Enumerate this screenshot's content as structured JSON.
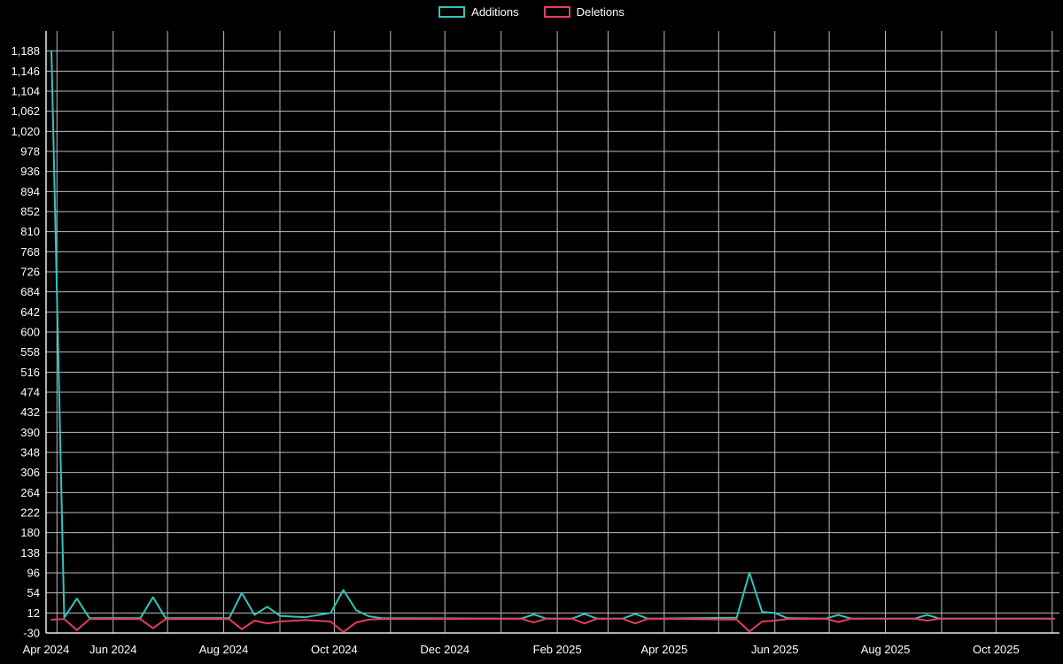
{
  "chart_data": {
    "type": "line",
    "title": "",
    "background": "#000000",
    "text_color": "#ffffff",
    "grid_color": "#bdbdbd",
    "axis_color": "#e8e8e8",
    "legend_position": "top-center",
    "x_axis": {
      "type": "time",
      "min": "2024-04-25",
      "max": "2025-11-05",
      "gridline_interval": "month",
      "tick_dates": [
        "2024-04-25",
        "2024-06-01",
        "2024-08-01",
        "2024-10-01",
        "2024-12-01",
        "2025-02-01",
        "2025-04-01",
        "2025-06-01",
        "2025-08-01",
        "2025-10-01"
      ],
      "tick_labels": [
        "Apr 2024",
        "Jun 2024",
        "Aug 2024",
        "Oct 2024",
        "Dec 2024",
        "Feb 2025",
        "Apr 2025",
        "Jun 2025",
        "Aug 2025",
        "Oct 2025"
      ]
    },
    "y_axis": {
      "min": -30,
      "max": 1230,
      "tick_step": 42,
      "ticks": [
        -30,
        12,
        54,
        96,
        138,
        180,
        222,
        264,
        306,
        348,
        390,
        432,
        474,
        516,
        558,
        600,
        642,
        684,
        726,
        768,
        810,
        852,
        894,
        936,
        978,
        1020,
        1062,
        1104,
        1146,
        1188
      ]
    },
    "series": [
      {
        "name": "Additions",
        "color": "#31c3bd",
        "points": [
          [
            "2024-04-28",
            1188
          ],
          [
            "2024-05-05",
            2
          ],
          [
            "2024-05-12",
            42
          ],
          [
            "2024-05-19",
            1
          ],
          [
            "2024-06-16",
            1
          ],
          [
            "2024-06-23",
            45
          ],
          [
            "2024-06-30",
            1
          ],
          [
            "2024-08-04",
            1
          ],
          [
            "2024-08-11",
            54
          ],
          [
            "2024-08-18",
            8
          ],
          [
            "2024-08-25",
            25
          ],
          [
            "2024-09-01",
            6
          ],
          [
            "2024-09-15",
            3
          ],
          [
            "2024-09-29",
            12
          ],
          [
            "2024-10-06",
            60
          ],
          [
            "2024-10-13",
            18
          ],
          [
            "2024-10-20",
            5
          ],
          [
            "2024-10-27",
            1
          ],
          [
            "2025-01-12",
            0
          ],
          [
            "2025-01-19",
            9
          ],
          [
            "2025-01-26",
            0
          ],
          [
            "2025-02-09",
            0
          ],
          [
            "2025-02-16",
            10
          ],
          [
            "2025-02-23",
            0
          ],
          [
            "2025-03-09",
            0
          ],
          [
            "2025-03-16",
            10
          ],
          [
            "2025-03-23",
            0
          ],
          [
            "2025-05-11",
            2
          ],
          [
            "2025-05-18",
            96
          ],
          [
            "2025-05-25",
            14
          ],
          [
            "2025-06-01",
            12
          ],
          [
            "2025-06-08",
            1
          ],
          [
            "2025-06-29",
            0
          ],
          [
            "2025-07-06",
            8
          ],
          [
            "2025-07-13",
            0
          ],
          [
            "2025-08-17",
            0
          ],
          [
            "2025-08-24",
            8
          ],
          [
            "2025-08-31",
            0
          ],
          [
            "2025-11-02",
            0
          ]
        ]
      },
      {
        "name": "Deletions",
        "color": "#e63c5e",
        "points": [
          [
            "2024-04-28",
            -2
          ],
          [
            "2024-05-05",
            -1
          ],
          [
            "2024-05-12",
            -24
          ],
          [
            "2024-05-19",
            -1
          ],
          [
            "2024-06-16",
            -1
          ],
          [
            "2024-06-23",
            -20
          ],
          [
            "2024-06-30",
            -1
          ],
          [
            "2024-08-04",
            -1
          ],
          [
            "2024-08-11",
            -22
          ],
          [
            "2024-08-18",
            -4
          ],
          [
            "2024-08-25",
            -10
          ],
          [
            "2024-09-01",
            -6
          ],
          [
            "2024-09-15",
            -3
          ],
          [
            "2024-09-29",
            -6
          ],
          [
            "2024-10-06",
            -28
          ],
          [
            "2024-10-13",
            -8
          ],
          [
            "2024-10-20",
            -2
          ],
          [
            "2024-10-27",
            -1
          ],
          [
            "2025-01-12",
            0
          ],
          [
            "2025-01-19",
            -8
          ],
          [
            "2025-01-26",
            0
          ],
          [
            "2025-02-09",
            0
          ],
          [
            "2025-02-16",
            -10
          ],
          [
            "2025-02-23",
            0
          ],
          [
            "2025-03-09",
            0
          ],
          [
            "2025-03-16",
            -10
          ],
          [
            "2025-03-23",
            0
          ],
          [
            "2025-05-11",
            -2
          ],
          [
            "2025-05-18",
            -27
          ],
          [
            "2025-05-25",
            -6
          ],
          [
            "2025-06-01",
            -4
          ],
          [
            "2025-06-08",
            -1
          ],
          [
            "2025-06-29",
            0
          ],
          [
            "2025-07-06",
            -7
          ],
          [
            "2025-07-13",
            0
          ],
          [
            "2025-08-17",
            0
          ],
          [
            "2025-08-24",
            -4
          ],
          [
            "2025-08-31",
            0
          ],
          [
            "2025-11-02",
            0
          ]
        ]
      }
    ]
  }
}
